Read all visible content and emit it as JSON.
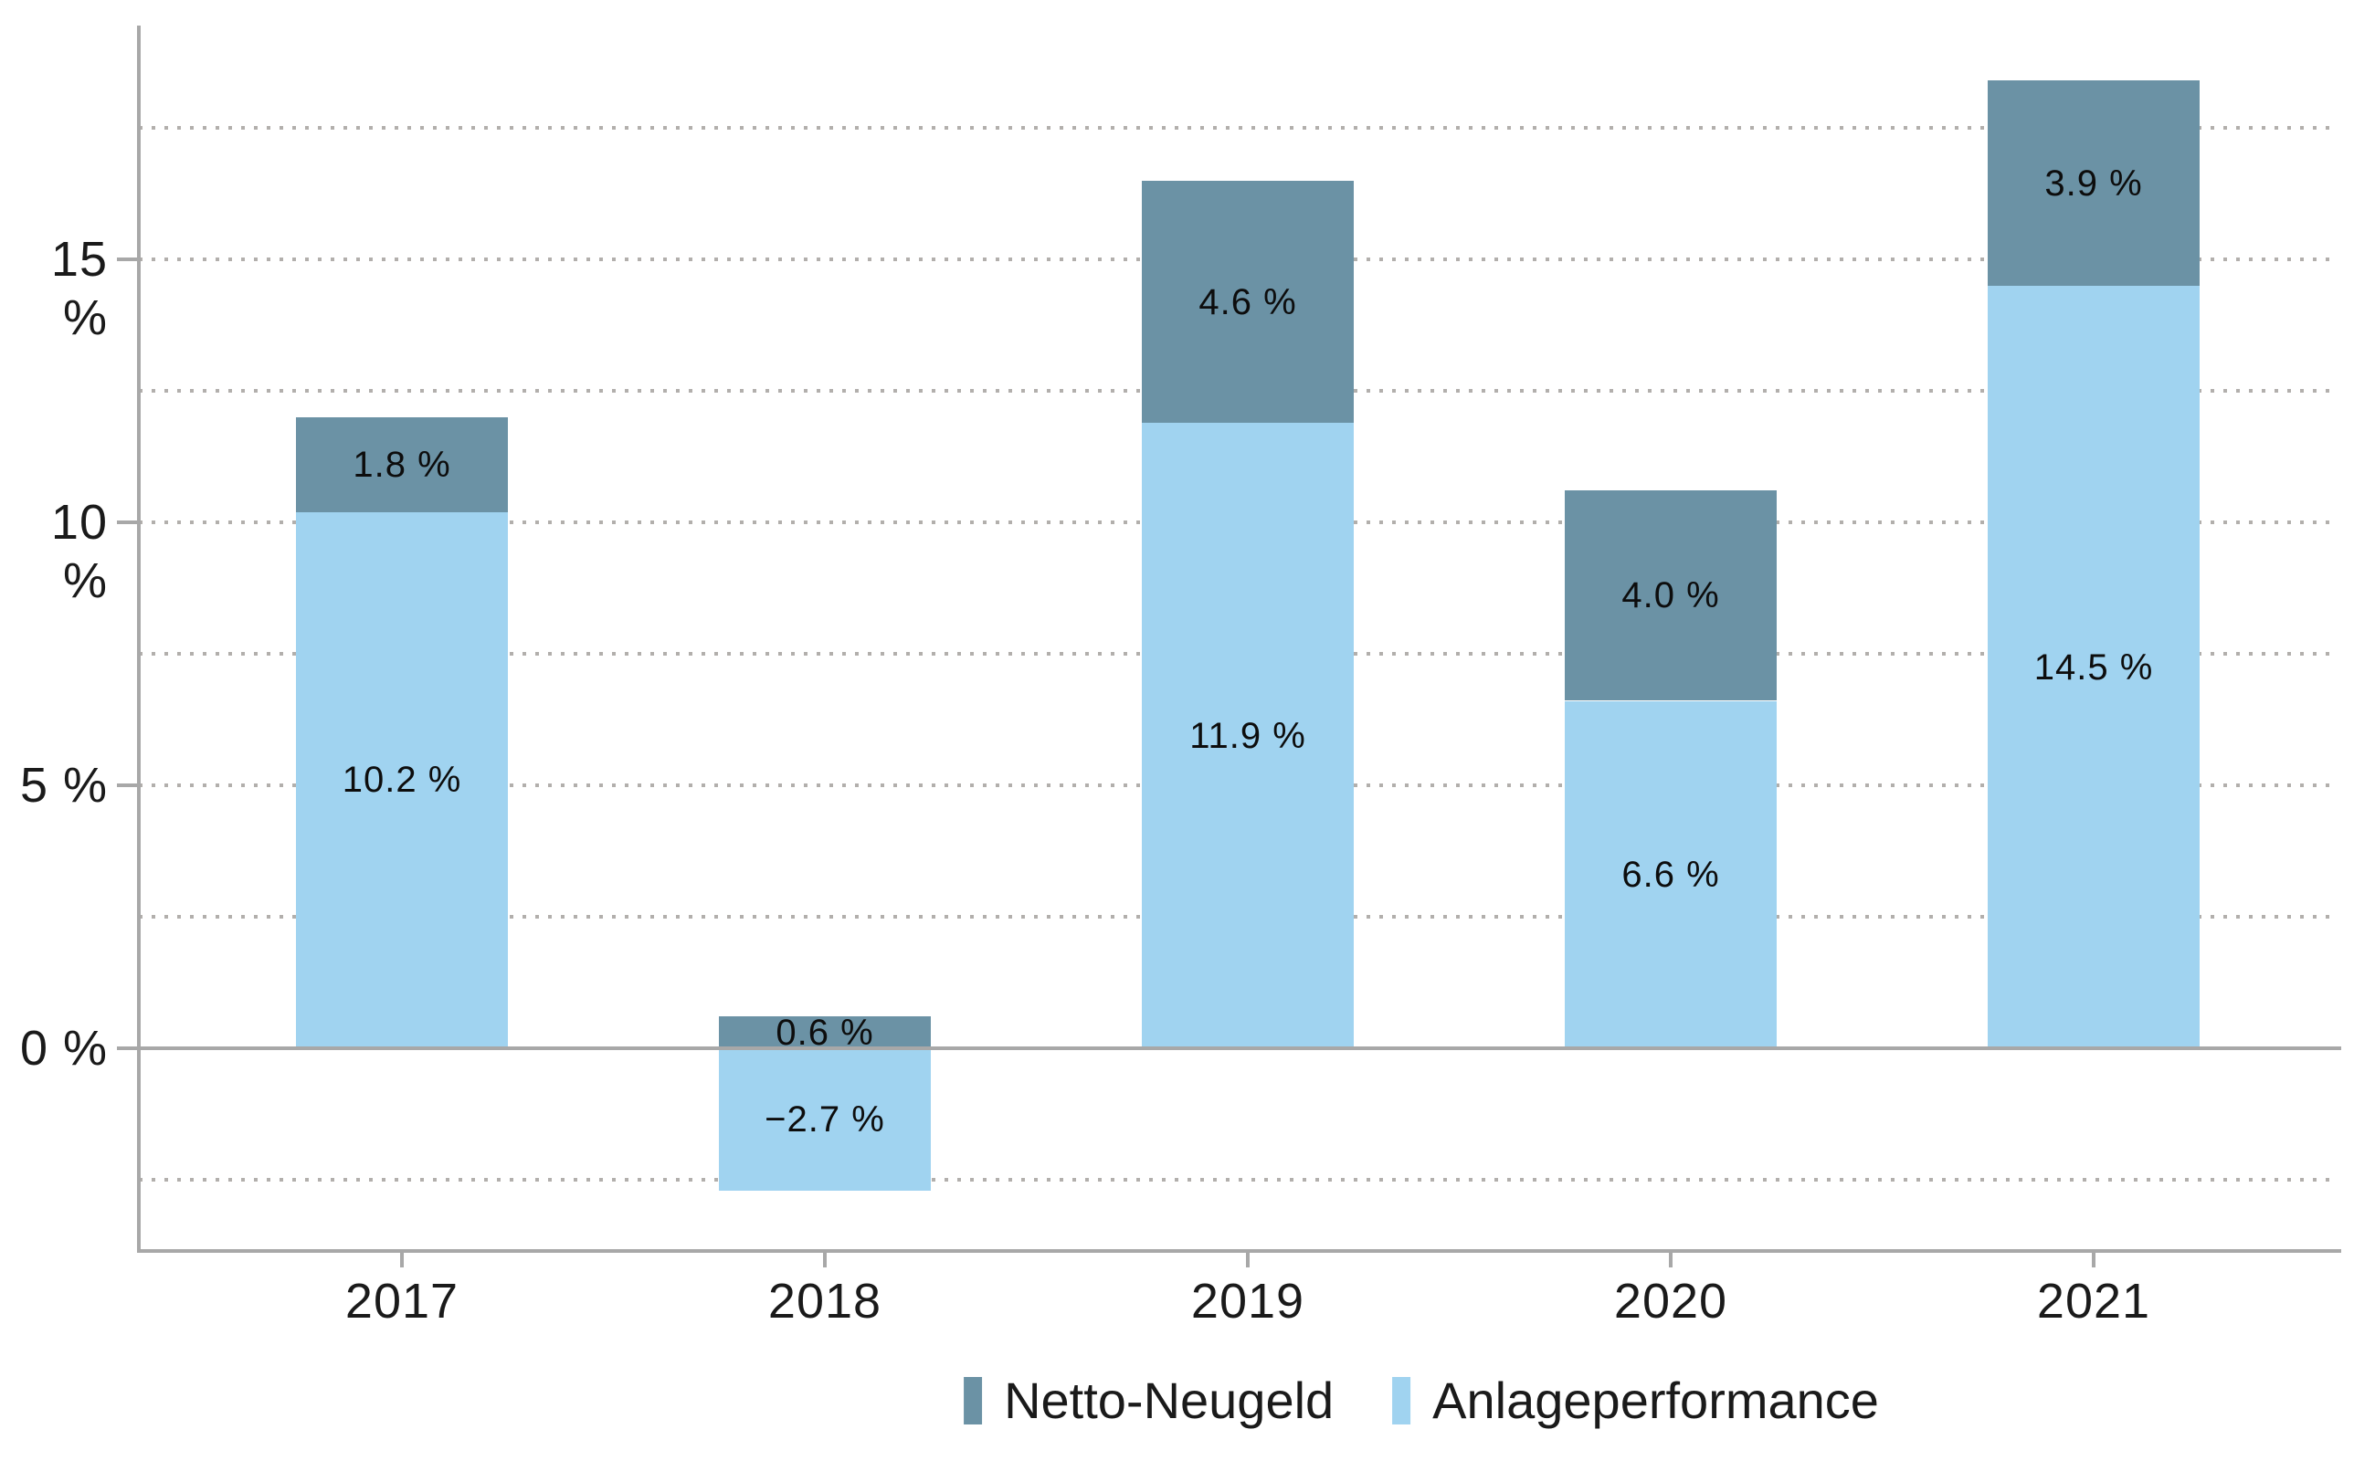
{
  "chart_data": {
    "type": "bar",
    "stacked": true,
    "categories": [
      "2017",
      "2018",
      "2019",
      "2020",
      "2021"
    ],
    "series": [
      {
        "name": "Netto-Neugeld",
        "color": "#6b92a5",
        "values": [
          1.8,
          0.6,
          4.6,
          4.0,
          3.9
        ],
        "labels": [
          "1.8 %",
          "0.6 %",
          "4.6 %",
          "4.0 %",
          "3.9 %"
        ]
      },
      {
        "name": "Anlageperformance",
        "color": "#a0d3f0",
        "values": [
          10.2,
          -2.7,
          11.9,
          6.6,
          14.5
        ],
        "labels": [
          "10.2 %",
          "−2.7 %",
          "11.9 %",
          "6.6 %",
          "14.5 %"
        ]
      }
    ],
    "stack_order_bottom_to_top": [
      "Anlageperformance",
      "Netto-Neugeld"
    ],
    "y_axis": {
      "unit": "%",
      "tick_values": [
        15,
        10,
        5,
        0
      ],
      "tick_labels": [
        "15 %",
        "10 %",
        "5 %",
        "0 %"
      ],
      "gridline_values": [
        17.5,
        15,
        12.5,
        10,
        7.5,
        5,
        2.5,
        -2.5
      ],
      "zero_line": 0,
      "ylim": [
        -3.8,
        19.4
      ],
      "gridline_style": "dotted"
    },
    "legend": {
      "position": "bottom-center",
      "entries": [
        "Netto-Neugeld",
        "Anlageperformance"
      ]
    }
  },
  "colors": {
    "background": "#ffffff",
    "axis": "#a8a8a8",
    "gridline": "#b2afac",
    "zero_line": "#a8a8a8",
    "value_label": "#0d0d0d",
    "tick_label": "#1a1a1a"
  }
}
